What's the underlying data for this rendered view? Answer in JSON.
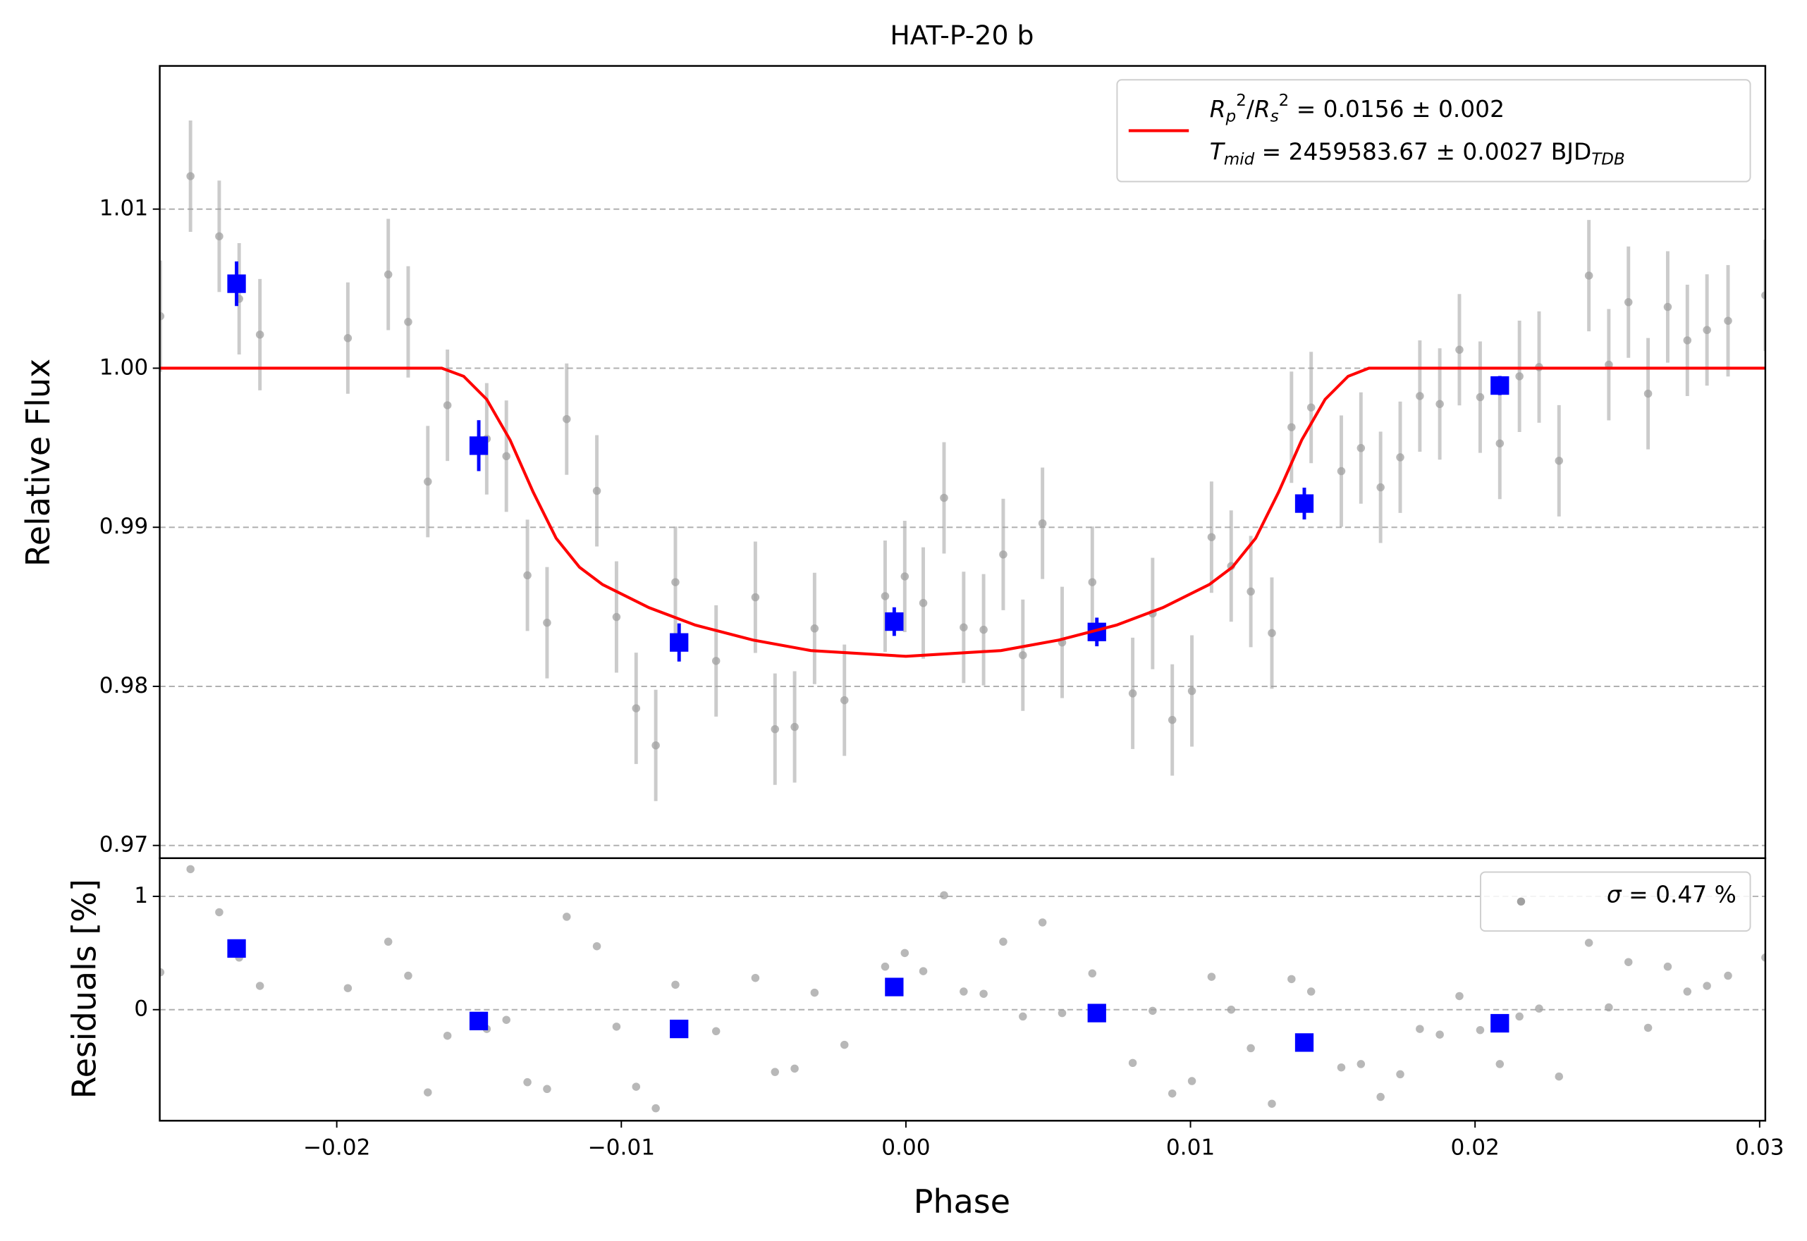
{
  "chart_data": {
    "type": "errorbar",
    "title": "HAT-P-20 b",
    "xlabel": "Phase",
    "xlim": [
      -0.02622,
      0.0302
    ],
    "xticks": [
      {
        "value": -0.02,
        "label": "−0.02"
      },
      {
        "value": -0.01,
        "label": "−0.01"
      },
      {
        "value": 0,
        "label": "0.00"
      },
      0.01,
      0.02,
      0.03
    ],
    "grid": true,
    "panels": [
      {
        "ylabel": "Relative Flux",
        "ylim": [
          0.9692,
          1.019
        ],
        "yticks": [
          0.97,
          0.98,
          0.99,
          {
            "value": 1,
            "label": "1.00"
          },
          1.01
        ],
        "legend": "upper right",
        "series": [
          {
            "kind": "errorbar",
            "marker": "circle",
            "color": "#a0a0a0",
            "x": [
              -0.0262,
              -0.02514,
              -0.02413,
              -0.02343,
              -0.0227,
              -0.01961,
              -0.01819,
              -0.01749,
              -0.0168,
              -0.01611,
              -0.01473,
              -0.01404,
              -0.0133,
              -0.01261,
              -0.01192,
              -0.01086,
              -0.01017,
              -0.00948,
              -0.00879,
              -0.0081,
              -0.00667,
              -0.00529,
              -0.0046,
              -0.00391,
              -0.00321,
              -0.00216,
              -0.00073,
              -4e-05,
              0.00061,
              0.00134,
              0.00203,
              0.00273,
              0.00342,
              0.00411,
              0.0048,
              0.00549,
              0.00655,
              0.00797,
              0.00867,
              0.00936,
              0.01005,
              0.01074,
              0.01143,
              0.01212,
              0.01286,
              0.01355,
              0.01424,
              0.0153,
              0.01599,
              0.01668,
              0.01737,
              0.01806,
              0.01876,
              0.01945,
              0.02018,
              0.02087,
              0.02156,
              0.02225,
              0.02295,
              0.024,
              0.0247,
              0.02539,
              0.02608,
              0.02677,
              0.02746,
              0.02815,
              0.02889,
              0.0302
            ],
            "values": [
              1.00327,
              1.01207,
              1.00829,
              1.00436,
              1.00211,
              1.00189,
              1.00589,
              1.00291,
              0.99287,
              0.99767,
              0.99556,
              0.99447,
              0.98698,
              0.984,
              0.9968,
              0.99229,
              0.98436,
              0.97862,
              0.97629,
              0.98655,
              0.9816,
              0.9856,
              0.97731,
              0.97745,
              0.98364,
              0.97913,
              0.98567,
              0.98691,
              0.98524,
              0.99185,
              0.98371,
              0.98356,
              0.98829,
              0.98196,
              0.99025,
              0.98276,
              0.98655,
              0.97956,
              0.98458,
              0.97789,
              0.97971,
              0.98938,
              0.98756,
              0.98596,
              0.98335,
              0.99629,
              0.99753,
              0.99353,
              0.99498,
              0.99251,
              0.9944,
              0.99825,
              0.99775,
              1.00116,
              0.99818,
              0.99527,
              0.99949,
              1.00007,
              0.99418,
              1.00582,
              1.00022,
              1.00415,
              0.9984,
              1.00385,
              1.00175,
              1.0024,
              1.00298,
              1.00458
            ],
            "errors": [
              0.0035,
              0.0035,
              0.0035,
              0.0035,
              0.0035,
              0.0035,
              0.0035,
              0.0035,
              0.0035,
              0.0035,
              0.0035,
              0.0035,
              0.0035,
              0.0035,
              0.0035,
              0.0035,
              0.0035,
              0.0035,
              0.0035,
              0.0035,
              0.0035,
              0.0035,
              0.0035,
              0.0035,
              0.0035,
              0.0035,
              0.0035,
              0.0035,
              0.0035,
              0.0035,
              0.0035,
              0.0035,
              0.0035,
              0.0035,
              0.0035,
              0.0035,
              0.0035,
              0.0035,
              0.0035,
              0.0035,
              0.0035,
              0.0035,
              0.0035,
              0.0035,
              0.0035,
              0.0035,
              0.0035,
              0.0035,
              0.0035,
              0.0035,
              0.0035,
              0.0035,
              0.0035,
              0.0035,
              0.0035,
              0.0035,
              0.0035,
              0.0035,
              0.0035,
              0.0035,
              0.0035,
              0.0035,
              0.0035,
              0.0035,
              0.0035,
              0.0035,
              0.0035,
              0.0035
            ]
          },
          {
            "kind": "errorbar",
            "marker": "square",
            "color": "#0000ff",
            "x": [
              -0.02352,
              -0.01501,
              -0.00797,
              -0.00041,
              0.00671,
              0.014,
              0.02087
            ],
            "values": [
              1.00531,
              0.99513,
              0.98276,
              0.98407,
              0.98342,
              0.99149,
              0.99891
            ],
            "errors": [
              0.0014,
              0.0016,
              0.0012,
              0.0009,
              0.0009,
              0.001,
              0.0006
            ]
          },
          {
            "kind": "line",
            "color": "#ff0000",
            "name": [
              "$R_p^2/R_s^2$ = 0.0156 ± 0.002",
              "$T_{mid}$ = 2459583.67 ± 0.0027 BJD$_{TDB}$"
            ],
            "x": [
              -0.0262,
              -0.01631,
              -0.01554,
              -0.01473,
              -0.01391,
              -0.0131,
              -0.01229,
              -0.01147,
              -0.01066,
              -0.00903,
              -0.0074,
              -0.00537,
              -0.00334,
              0,
              0.00334,
              0.00537,
              0.0074,
              0.00903,
              0.01066,
              0.01147,
              0.01229,
              0.0131,
              0.01391,
              0.01473,
              0.01554,
              0.01627,
              0.0302
            ],
            "values": [
              1,
              1,
              0.99949,
              0.99804,
              0.99549,
              0.99222,
              0.98931,
              0.98749,
              0.9864,
              0.98495,
              0.98385,
              0.98291,
              0.98225,
              0.98189,
              0.98225,
              0.98291,
              0.98385,
              0.98495,
              0.9864,
              0.98749,
              0.98931,
              0.99222,
              0.99549,
              0.99804,
              0.99949,
              1,
              1
            ]
          }
        ]
      },
      {
        "ylabel": "Residuals [%]",
        "ylim": [
          -0.98,
          1.337
        ],
        "yticks": [
          0,
          1
        ],
        "legend": "upper right",
        "series": [
          {
            "kind": "scatter",
            "marker": "circle",
            "color": "#a0a0a0",
            "name": [
              "$\\sigma$ = 0.47 %"
            ],
            "x": [
              -0.0262,
              -0.02514,
              -0.02413,
              -0.02343,
              -0.0227,
              -0.01961,
              -0.01819,
              -0.01749,
              -0.0168,
              -0.01611,
              -0.01473,
              -0.01404,
              -0.0133,
              -0.01261,
              -0.01192,
              -0.01086,
              -0.01017,
              -0.00948,
              -0.00879,
              -0.0081,
              -0.00667,
              -0.00529,
              -0.0046,
              -0.00391,
              -0.00321,
              -0.00216,
              -0.00073,
              -4e-05,
              0.00061,
              0.00134,
              0.00203,
              0.00273,
              0.00342,
              0.00411,
              0.0048,
              0.00549,
              0.00655,
              0.00797,
              0.00867,
              0.00936,
              0.01005,
              0.01074,
              0.01143,
              0.01212,
              0.01286,
              0.01355,
              0.01424,
              0.0153,
              0.01599,
              0.01668,
              0.01737,
              0.01806,
              0.01876,
              0.01945,
              0.02018,
              0.02087,
              0.02156,
              0.02225,
              0.02295,
              0.024,
              0.0247,
              0.02539,
              0.02608,
              0.02677,
              0.02746,
              0.02815,
              0.02889,
              0.0302
            ],
            "values": [
              0.33,
              1.24,
              0.86,
              0.46,
              0.21,
              0.19,
              0.6,
              0.3,
              -0.73,
              -0.23,
              -0.17,
              -0.09,
              -0.64,
              -0.7,
              0.82,
              0.56,
              -0.15,
              -0.68,
              -0.87,
              0.22,
              -0.19,
              0.28,
              -0.55,
              -0.52,
              0.15,
              -0.31,
              0.38,
              0.5,
              0.34,
              1.01,
              0.16,
              0.14,
              0.6,
              -0.06,
              0.77,
              -0.03,
              0.32,
              -0.47,
              -0.01,
              -0.74,
              -0.63,
              0.29,
              0,
              -0.34,
              -0.83,
              0.27,
              0.16,
              -0.51,
              -0.48,
              -0.77,
              -0.57,
              -0.17,
              -0.22,
              0.12,
              -0.18,
              -0.48,
              -0.06,
              0.01,
              -0.59,
              0.59,
              0.02,
              0.42,
              -0.16,
              0.38,
              0.16,
              0.21,
              0.3,
              0.46
            ]
          },
          {
            "kind": "scatter",
            "marker": "square",
            "color": "#0000ff",
            "x": [
              -0.02352,
              -0.01501,
              -0.00797,
              -0.00041,
              0.00671,
              0.014,
              0.02087
            ],
            "values": [
              0.54,
              -0.1,
              -0.17,
              0.2,
              -0.03,
              -0.29,
              -0.12
            ]
          }
        ]
      }
    ]
  }
}
